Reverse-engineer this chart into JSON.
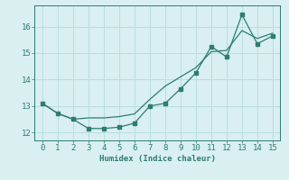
{
  "x": [
    0,
    1,
    2,
    3,
    4,
    5,
    6,
    7,
    8,
    9,
    10,
    11,
    12,
    13,
    14,
    15
  ],
  "line1_y": [
    13.1,
    12.72,
    12.5,
    12.55,
    12.55,
    12.6,
    12.7,
    13.25,
    13.75,
    14.1,
    14.45,
    15.05,
    15.1,
    15.85,
    15.55,
    15.75
  ],
  "line2_y": [
    13.1,
    12.72,
    12.5,
    12.15,
    12.15,
    12.2,
    12.35,
    13.0,
    13.1,
    13.65,
    14.25,
    15.25,
    14.85,
    16.45,
    15.35,
    15.65
  ],
  "line_color": "#2e7d6e",
  "bg_color": "#d9eff0",
  "grid_color": "#b8dede",
  "xlabel": "Humidex (Indice chaleur)",
  "xlim": [
    -0.5,
    15.5
  ],
  "ylim": [
    11.7,
    16.8
  ],
  "xticks": [
    0,
    1,
    2,
    3,
    4,
    5,
    6,
    7,
    8,
    9,
    10,
    11,
    12,
    13,
    14,
    15
  ],
  "yticks": [
    12,
    13,
    14,
    15,
    16
  ]
}
